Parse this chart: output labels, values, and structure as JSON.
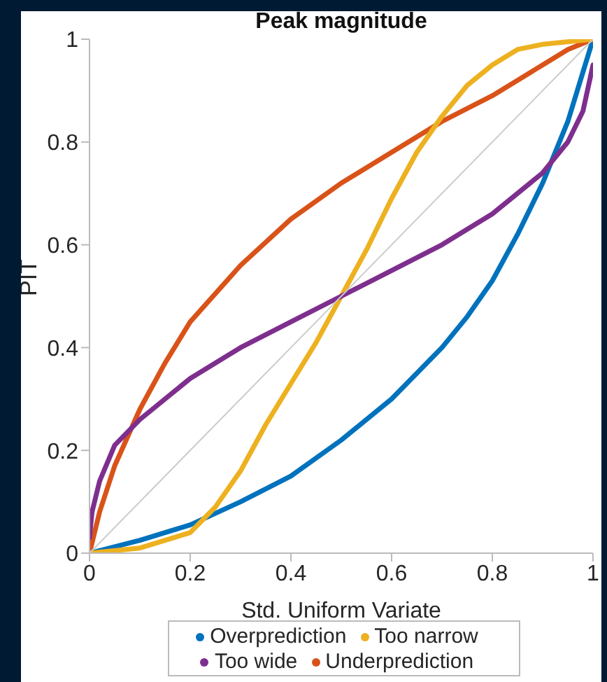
{
  "chart_data": {
    "type": "line",
    "title": "Peak magnitude",
    "xlabel": "Std. Uniform Variate",
    "ylabel": "PIT",
    "xlim": [
      0,
      1
    ],
    "ylim": [
      0,
      1
    ],
    "xticks": [
      0,
      0.2,
      0.4,
      0.6,
      0.8,
      1
    ],
    "yticks": [
      0,
      0.2,
      0.4,
      0.6,
      0.8,
      1
    ],
    "grid": false,
    "legend": "bottom",
    "marker": "none",
    "line_style": "solid",
    "series": [
      {
        "name": "Overprediction",
        "color": "#0072bd",
        "x": [
          0,
          0.1,
          0.2,
          0.3,
          0.4,
          0.5,
          0.6,
          0.7,
          0.75,
          0.8,
          0.85,
          0.9,
          0.95,
          1
        ],
        "values": [
          0,
          0.025,
          0.055,
          0.1,
          0.15,
          0.22,
          0.3,
          0.4,
          0.46,
          0.53,
          0.62,
          0.72,
          0.84,
          1
        ]
      },
      {
        "name": "Underprediction",
        "color": "#d95319",
        "x": [
          0,
          0.02,
          0.05,
          0.1,
          0.15,
          0.2,
          0.3,
          0.4,
          0.5,
          0.6,
          0.7,
          0.8,
          0.9,
          0.95,
          1
        ],
        "values": [
          0,
          0.08,
          0.17,
          0.28,
          0.37,
          0.45,
          0.56,
          0.65,
          0.72,
          0.78,
          0.84,
          0.89,
          0.95,
          0.98,
          1
        ]
      },
      {
        "name": "Too narrow",
        "color": "#edb120",
        "x": [
          0,
          0.1,
          0.2,
          0.25,
          0.3,
          0.35,
          0.4,
          0.45,
          0.5,
          0.55,
          0.6,
          0.65,
          0.7,
          0.75,
          0.8,
          0.85,
          0.9,
          1
        ],
        "values": [
          0,
          0.01,
          0.04,
          0.09,
          0.16,
          0.25,
          0.33,
          0.41,
          0.5,
          0.59,
          0.69,
          0.78,
          0.85,
          0.91,
          0.95,
          0.98,
          0.99,
          1
        ]
      },
      {
        "name": "Too wide",
        "color": "#7e2f8e",
        "x": [
          0,
          0.005,
          0.02,
          0.05,
          0.1,
          0.2,
          0.3,
          0.4,
          0.5,
          0.6,
          0.7,
          0.8,
          0.9,
          0.95,
          0.98,
          1
        ],
        "values": [
          0.03,
          0.08,
          0.14,
          0.21,
          0.26,
          0.34,
          0.4,
          0.45,
          0.5,
          0.55,
          0.6,
          0.66,
          0.74,
          0.8,
          0.86,
          0.95
        ]
      },
      {
        "color": "#cccccc",
        "x": [
          0,
          1
        ],
        "values": [
          0,
          1
        ]
      }
    ]
  }
}
